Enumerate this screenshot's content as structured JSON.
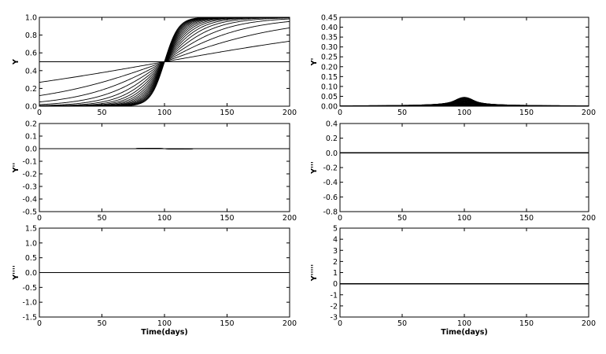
{
  "figure": {
    "background": "#ffffff",
    "line_color": "#000000"
  },
  "chart_data": [
    {
      "type": "line",
      "model": "logistic",
      "derivative": 0,
      "title": "",
      "xlabel": "",
      "ylabel": "Y",
      "xlim": [
        0,
        200
      ],
      "ylim": [
        0,
        1.0
      ],
      "xticks": [
        "0",
        "50",
        "100",
        "150",
        "200"
      ],
      "yticks": [
        "0.0",
        "0.2",
        "0.4",
        "0.6",
        "0.8",
        "1.0"
      ],
      "grid": false,
      "legend": "none",
      "curve_family": {
        "center_x": 100,
        "rate_min": 0,
        "rate_max": 0.18,
        "curve_count": 18
      }
    },
    {
      "type": "line",
      "model": "logistic",
      "derivative": 1,
      "title": "",
      "xlabel": "",
      "ylabel": "Y'",
      "xlim": [
        0,
        200
      ],
      "ylim": [
        0,
        0.45
      ],
      "xticks": [
        "0",
        "50",
        "100",
        "150",
        "200"
      ],
      "yticks": [
        "0.00",
        "0.05",
        "0.10",
        "0.15",
        "0.20",
        "0.25",
        "0.30",
        "0.35",
        "0.40",
        "0.45"
      ],
      "grid": false,
      "legend": "none",
      "curve_family": {
        "center_x": 100,
        "rate_min": 0,
        "rate_max": 0.18,
        "curve_count": 18
      }
    },
    {
      "type": "line",
      "model": "logistic",
      "derivative": 2,
      "title": "",
      "xlabel": "",
      "ylabel": "Y''",
      "xlim": [
        0,
        200
      ],
      "ylim": [
        -0.5,
        0.2
      ],
      "xticks": [
        "0",
        "50",
        "100",
        "150",
        "200"
      ],
      "yticks": [
        "-0.5",
        "-0.4",
        "-0.3",
        "-0.2",
        "-0.1",
        "0.0",
        "0.1",
        "0.2"
      ],
      "grid": false,
      "legend": "none",
      "curve_family": {
        "center_x": 100,
        "rate_min": 0,
        "rate_max": 0.18,
        "curve_count": 18
      }
    },
    {
      "type": "line",
      "model": "logistic",
      "derivative": 3,
      "title": "",
      "xlabel": "",
      "ylabel": "Y'''",
      "xlim": [
        0,
        200
      ],
      "ylim": [
        -0.8,
        0.4
      ],
      "xticks": [
        "0",
        "50",
        "100",
        "150",
        "200"
      ],
      "yticks": [
        "-0.8",
        "-0.6",
        "-0.4",
        "-0.2",
        "0.0",
        "0.2",
        "0.4"
      ],
      "grid": false,
      "legend": "none",
      "curve_family": {
        "center_x": 100,
        "rate_min": 0,
        "rate_max": 0.18,
        "curve_count": 18
      }
    },
    {
      "type": "line",
      "model": "logistic",
      "derivative": 4,
      "title": "",
      "xlabel": "Time(days)",
      "ylabel": "Y''''",
      "xlim": [
        0,
        200
      ],
      "ylim": [
        -1.5,
        1.5
      ],
      "xticks": [
        "0",
        "50",
        "100",
        "150",
        "200"
      ],
      "yticks": [
        "-1.5",
        "-1.0",
        "-0.5",
        "0.0",
        "0.5",
        "1.0",
        "1.5"
      ],
      "grid": false,
      "legend": "none",
      "curve_family": {
        "center_x": 100,
        "rate_min": 0,
        "rate_max": 0.18,
        "curve_count": 18
      }
    },
    {
      "type": "line",
      "model": "logistic",
      "derivative": 5,
      "title": "",
      "xlabel": "Time(days)",
      "ylabel": "Y'''''",
      "xlim": [
        0,
        200
      ],
      "ylim": [
        -3,
        5
      ],
      "xticks": [
        "0",
        "50",
        "100",
        "150",
        "200"
      ],
      "yticks": [
        "-3",
        "-2",
        "-1",
        "0",
        "1",
        "2",
        "3",
        "4",
        "5"
      ],
      "grid": false,
      "legend": "none",
      "curve_family": {
        "center_x": 100,
        "rate_min": 0,
        "rate_max": 0.18,
        "curve_count": 18
      }
    }
  ]
}
